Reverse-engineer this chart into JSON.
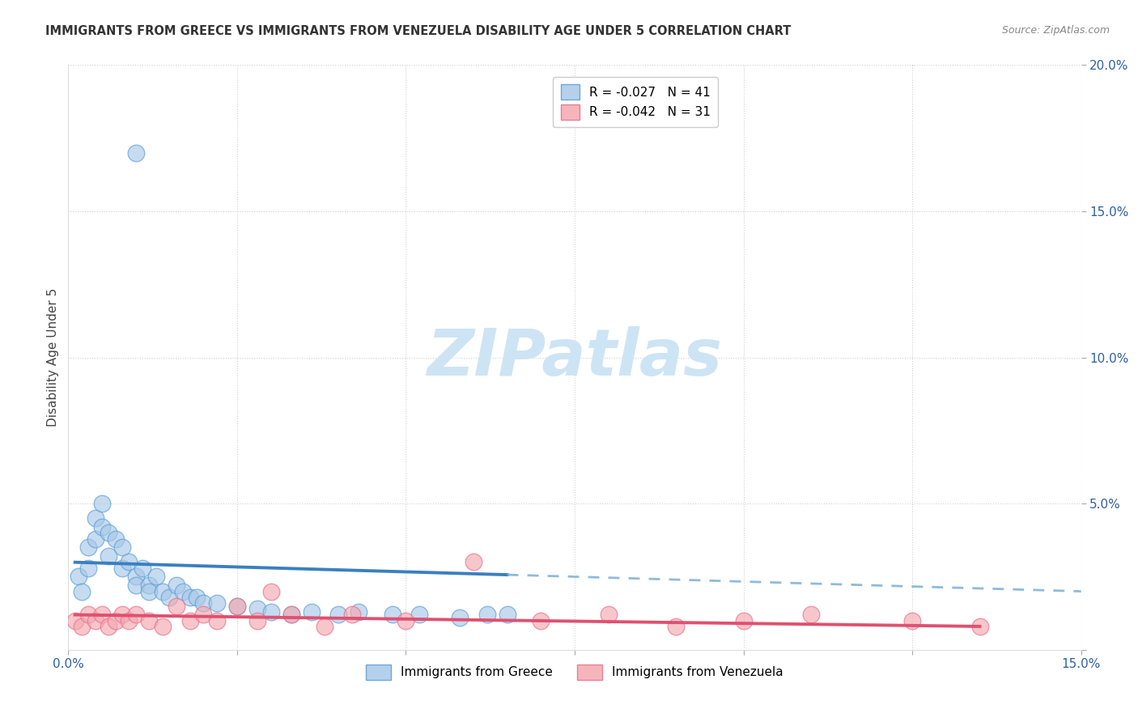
{
  "title": "IMMIGRANTS FROM GREECE VS IMMIGRANTS FROM VENEZUELA DISABILITY AGE UNDER 5 CORRELATION CHART",
  "source": "Source: ZipAtlas.com",
  "ylabel": "Disability Age Under 5",
  "xlim": [
    0,
    0.15
  ],
  "ylim": [
    0,
    0.2
  ],
  "xticks": [
    0.0,
    0.025,
    0.05,
    0.075,
    0.1,
    0.125,
    0.15
  ],
  "yticks": [
    0.0,
    0.05,
    0.1,
    0.15,
    0.2
  ],
  "legend_r_entries": [
    {
      "label": "R = -0.027   N = 41",
      "color": "#a8c8e8"
    },
    {
      "label": "R = -0.042   N = 31",
      "color": "#f4a8b0"
    }
  ],
  "bottom_legend": [
    {
      "label": "Immigrants from Greece",
      "color": "#a8c8e8"
    },
    {
      "label": "Immigrants from Venezuela",
      "color": "#f4a8b0"
    }
  ],
  "greece_x": [
    0.0015,
    0.002,
    0.003,
    0.003,
    0.004,
    0.004,
    0.005,
    0.005,
    0.006,
    0.006,
    0.007,
    0.008,
    0.008,
    0.009,
    0.01,
    0.01,
    0.011,
    0.012,
    0.012,
    0.013,
    0.014,
    0.015,
    0.016,
    0.017,
    0.018,
    0.019,
    0.02,
    0.022,
    0.025,
    0.028,
    0.03,
    0.033,
    0.036,
    0.04,
    0.043,
    0.048,
    0.052,
    0.058,
    0.062,
    0.065,
    0.01
  ],
  "greece_y": [
    0.025,
    0.02,
    0.035,
    0.028,
    0.045,
    0.038,
    0.05,
    0.042,
    0.04,
    0.032,
    0.038,
    0.035,
    0.028,
    0.03,
    0.025,
    0.022,
    0.028,
    0.022,
    0.02,
    0.025,
    0.02,
    0.018,
    0.022,
    0.02,
    0.018,
    0.018,
    0.016,
    0.016,
    0.015,
    0.014,
    0.013,
    0.012,
    0.013,
    0.012,
    0.013,
    0.012,
    0.012,
    0.011,
    0.012,
    0.012,
    0.17
  ],
  "venezuela_x": [
    0.001,
    0.002,
    0.003,
    0.004,
    0.005,
    0.006,
    0.007,
    0.008,
    0.009,
    0.01,
    0.012,
    0.014,
    0.016,
    0.018,
    0.02,
    0.022,
    0.025,
    0.028,
    0.03,
    0.033,
    0.038,
    0.042,
    0.05,
    0.06,
    0.07,
    0.08,
    0.09,
    0.1,
    0.11,
    0.125,
    0.135
  ],
  "venezuela_y": [
    0.01,
    0.008,
    0.012,
    0.01,
    0.012,
    0.008,
    0.01,
    0.012,
    0.01,
    0.012,
    0.01,
    0.008,
    0.015,
    0.01,
    0.012,
    0.01,
    0.015,
    0.01,
    0.02,
    0.012,
    0.008,
    0.012,
    0.01,
    0.03,
    0.01,
    0.012,
    0.008,
    0.01,
    0.012,
    0.01,
    0.008
  ],
  "greece_color": "#a8c8e8",
  "greece_edge_color": "#5a9fd4",
  "venezuela_color": "#f4a8b0",
  "venezuela_edge_color": "#e8708a",
  "trendline_greece_solid_color": "#3a7fc1",
  "trendline_greece_dash_color": "#7aafd4",
  "trendline_venezuela_color": "#e05070",
  "watermark_text": "ZIPatlas",
  "watermark_color": "#cde4f5",
  "background_color": "#ffffff",
  "grid_color": "#d0d0d0",
  "tick_label_color": "#3060a0",
  "title_color": "#333333",
  "source_color": "#888888"
}
